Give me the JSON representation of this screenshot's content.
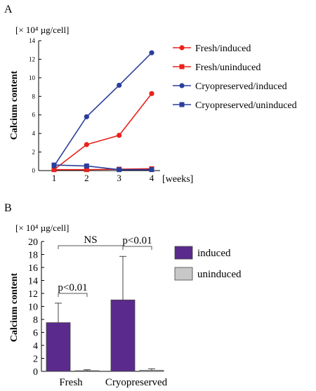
{
  "chart_data": [
    {
      "panel": "A",
      "type": "line",
      "unit_label": "[× 10⁴ µg/cell]",
      "ylabel": "Calcium content",
      "x_unit": "[weeks]",
      "x": [
        1,
        2,
        3,
        4
      ],
      "xlim": [
        1,
        4
      ],
      "ylim": [
        0,
        14
      ],
      "yticks": [
        0,
        2,
        4,
        6,
        8,
        10,
        12,
        14
      ],
      "grid": false,
      "legend_position": "right",
      "series": [
        {
          "name": "Fresh/induced",
          "marker": "circle",
          "color": "#e8231c",
          "values": [
            0.1,
            2.8,
            3.8,
            8.3
          ]
        },
        {
          "name": "Fresh/uninduced",
          "marker": "square",
          "color": "#e8231c",
          "values": [
            0.1,
            0.1,
            0.15,
            0.2
          ]
        },
        {
          "name": "Cryopreserved/induced",
          "marker": "circle",
          "color": "#2b3e9c",
          "values": [
            0.5,
            5.8,
            9.2,
            12.7
          ]
        },
        {
          "name": "Cryopreserved/uninduced",
          "marker": "square",
          "color": "#2b3e9c",
          "values": [
            0.6,
            0.5,
            0.1,
            0.1
          ]
        }
      ]
    },
    {
      "panel": "B",
      "type": "bar",
      "unit_label": "[× 10⁴ µg/cell]",
      "ylabel": "Calcium content",
      "categories": [
        "Fresh",
        "Cryopreserved"
      ],
      "ylim": [
        0,
        20
      ],
      "yticks": [
        0,
        2,
        4,
        6,
        8,
        10,
        12,
        14,
        16,
        18,
        20
      ],
      "legend_position": "right",
      "series": [
        {
          "name": "induced",
          "color": "#5a2a8c",
          "values": [
            7.5,
            11.0
          ],
          "errors": [
            3.0,
            6.7
          ]
        },
        {
          "name": "uninduced",
          "color": "#c8c8c8",
          "values": [
            0.1,
            0.15
          ],
          "errors": [
            0.15,
            0.25
          ]
        }
      ],
      "annotations": [
        "NS",
        "p<0.01",
        "p<0.01"
      ]
    }
  ]
}
